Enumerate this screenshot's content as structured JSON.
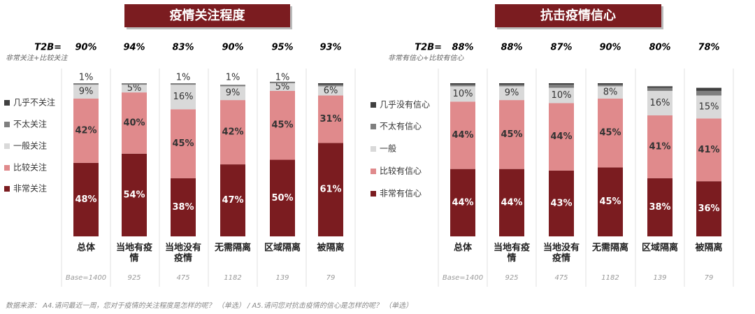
{
  "chart_data": [
    {
      "type": "bar",
      "stacked": true,
      "title": "疫情关注程度",
      "t2b_label": "T2B=",
      "t2b_note": "非常关注+比较关注",
      "t2b_values": [
        90,
        94,
        83,
        90,
        95,
        93
      ],
      "t2b_labels": [
        "90%",
        "94%",
        "83%",
        "90%",
        "95%",
        "93%"
      ],
      "categories": [
        "总体",
        "当地有疫情",
        "当地没有疫情",
        "无需隔离",
        "区域隔离",
        "被隔离"
      ],
      "bases": [
        "Base=1400",
        "925",
        "475",
        "1182",
        "139",
        "79"
      ],
      "ylim": [
        0,
        100
      ],
      "series": [
        {
          "name": "非常关注",
          "color": "#7b1c20",
          "values": [
            48,
            54,
            38,
            47,
            50,
            61
          ],
          "value_labels": [
            "48%",
            "54%",
            "38%",
            "47%",
            "50%",
            "61%"
          ]
        },
        {
          "name": "比较关注",
          "color": "#e08a8c",
          "values": [
            42,
            40,
            45,
            42,
            45,
            31
          ],
          "value_labels": [
            "42%",
            "40%",
            "45%",
            "42%",
            "45%",
            "31%"
          ]
        },
        {
          "name": "一般关注",
          "color": "#d9d9d9",
          "values": [
            9,
            5,
            16,
            9,
            5,
            6
          ],
          "value_labels": [
            "9%",
            "5%",
            "16%",
            "9%",
            "5%",
            "6%"
          ]
        },
        {
          "name": "不太关注",
          "color": "#7f7f7f",
          "values": [
            1,
            1,
            1,
            1,
            1,
            1
          ],
          "value_labels": [
            "1%",
            null,
            "1%",
            "1%",
            "1%",
            null
          ]
        },
        {
          "name": "几乎不关注",
          "color": "#404040",
          "values": [
            0,
            0,
            0,
            0,
            0,
            1
          ]
        }
      ]
    },
    {
      "type": "bar",
      "stacked": true,
      "title": "抗击疫情信心",
      "t2b_label": "T2B=",
      "t2b_note": "非常有信心+比较有信心",
      "t2b_values": [
        88,
        88,
        87,
        90,
        80,
        78
      ],
      "t2b_labels": [
        "88%",
        "88%",
        "87%",
        "90%",
        "80%",
        "78%"
      ],
      "categories": [
        "总体",
        "当地有疫情",
        "当地没有疫情",
        "无需隔离",
        "区域隔离",
        "被隔离"
      ],
      "bases": [
        "Base=1400",
        "925",
        "475",
        "1182",
        "139",
        "79"
      ],
      "ylim": [
        0,
        100
      ],
      "series": [
        {
          "name": "非常有信心",
          "color": "#7b1c20",
          "values": [
            44,
            44,
            43,
            45,
            38,
            36
          ],
          "value_labels": [
            "44%",
            "44%",
            "43%",
            "45%",
            "38%",
            "36%"
          ]
        },
        {
          "name": "比较有信心",
          "color": "#e08a8c",
          "values": [
            44,
            45,
            44,
            45,
            41,
            41
          ],
          "value_labels": [
            "44%",
            "45%",
            "44%",
            "45%",
            "41%",
            "41%"
          ]
        },
        {
          "name": "一般",
          "color": "#d9d9d9",
          "values": [
            10,
            9,
            10,
            8,
            16,
            15
          ],
          "value_labels": [
            "10%",
            "9%",
            "10%",
            "8%",
            "16%",
            "15%"
          ]
        },
        {
          "name": "不太有信心",
          "color": "#7f7f7f",
          "values": [
            1,
            1,
            2,
            1,
            2,
            3
          ]
        },
        {
          "name": "几乎没有信心",
          "color": "#404040",
          "values": [
            1,
            1,
            1,
            1,
            1,
            2
          ]
        }
      ]
    }
  ],
  "footer": "数据来源： A4.请问最近一周，您对于疫情的关注程度是怎样的呢？ （单选） / A5.请问您对抗击疫情的信心是怎样的呢？ （单选）"
}
